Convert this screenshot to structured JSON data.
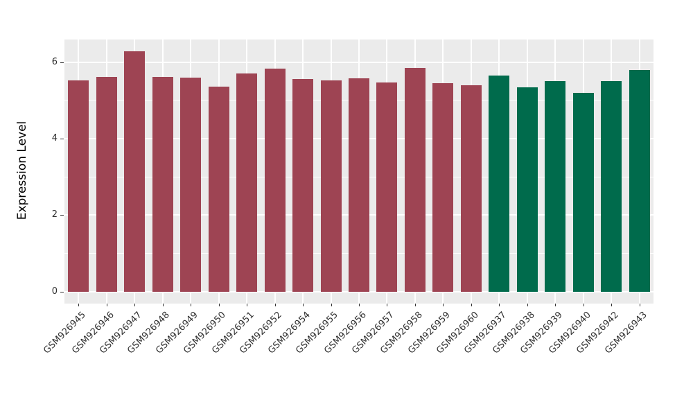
{
  "chart_data": {
    "type": "bar",
    "title": "",
    "xlabel": "",
    "ylabel": "Expression Level",
    "ylim": [
      -0.31,
      6.59
    ],
    "yticks": [
      0,
      2,
      4,
      6
    ],
    "yticks_minor": [
      1,
      3,
      5
    ],
    "grid": "major and minor horizontal white gridlines, vertical white gridline at each category center, on gray panel",
    "legend_position": "none",
    "panel_bg": "#EBEBEB",
    "grid_color": "#FFFFFF",
    "categories": [
      "GSM926945",
      "GSM926946",
      "GSM926947",
      "GSM926948",
      "GSM926949",
      "GSM926950",
      "GSM926951",
      "GSM926952",
      "GSM926954",
      "GSM926955",
      "GSM926956",
      "GSM926957",
      "GSM926958",
      "GSM926959",
      "GSM926960",
      "GSM926937",
      "GSM926938",
      "GSM926939",
      "GSM926940",
      "GSM926942",
      "GSM926943"
    ],
    "values": [
      5.53,
      5.62,
      6.28,
      5.62,
      5.6,
      5.35,
      5.7,
      5.83,
      5.56,
      5.53,
      5.57,
      5.46,
      5.84,
      5.45,
      5.4,
      5.65,
      5.34,
      5.51,
      5.19,
      5.51,
      5.8
    ],
    "groups": [
      "group1",
      "group1",
      "group1",
      "group1",
      "group1",
      "group1",
      "group1",
      "group1",
      "group1",
      "group1",
      "group1",
      "group1",
      "group1",
      "group1",
      "group1",
      "group2",
      "group2",
      "group2",
      "group2",
      "group2",
      "group2"
    ],
    "group_colors": {
      "group1": "#9E4453",
      "group2": "#006B4C"
    }
  }
}
